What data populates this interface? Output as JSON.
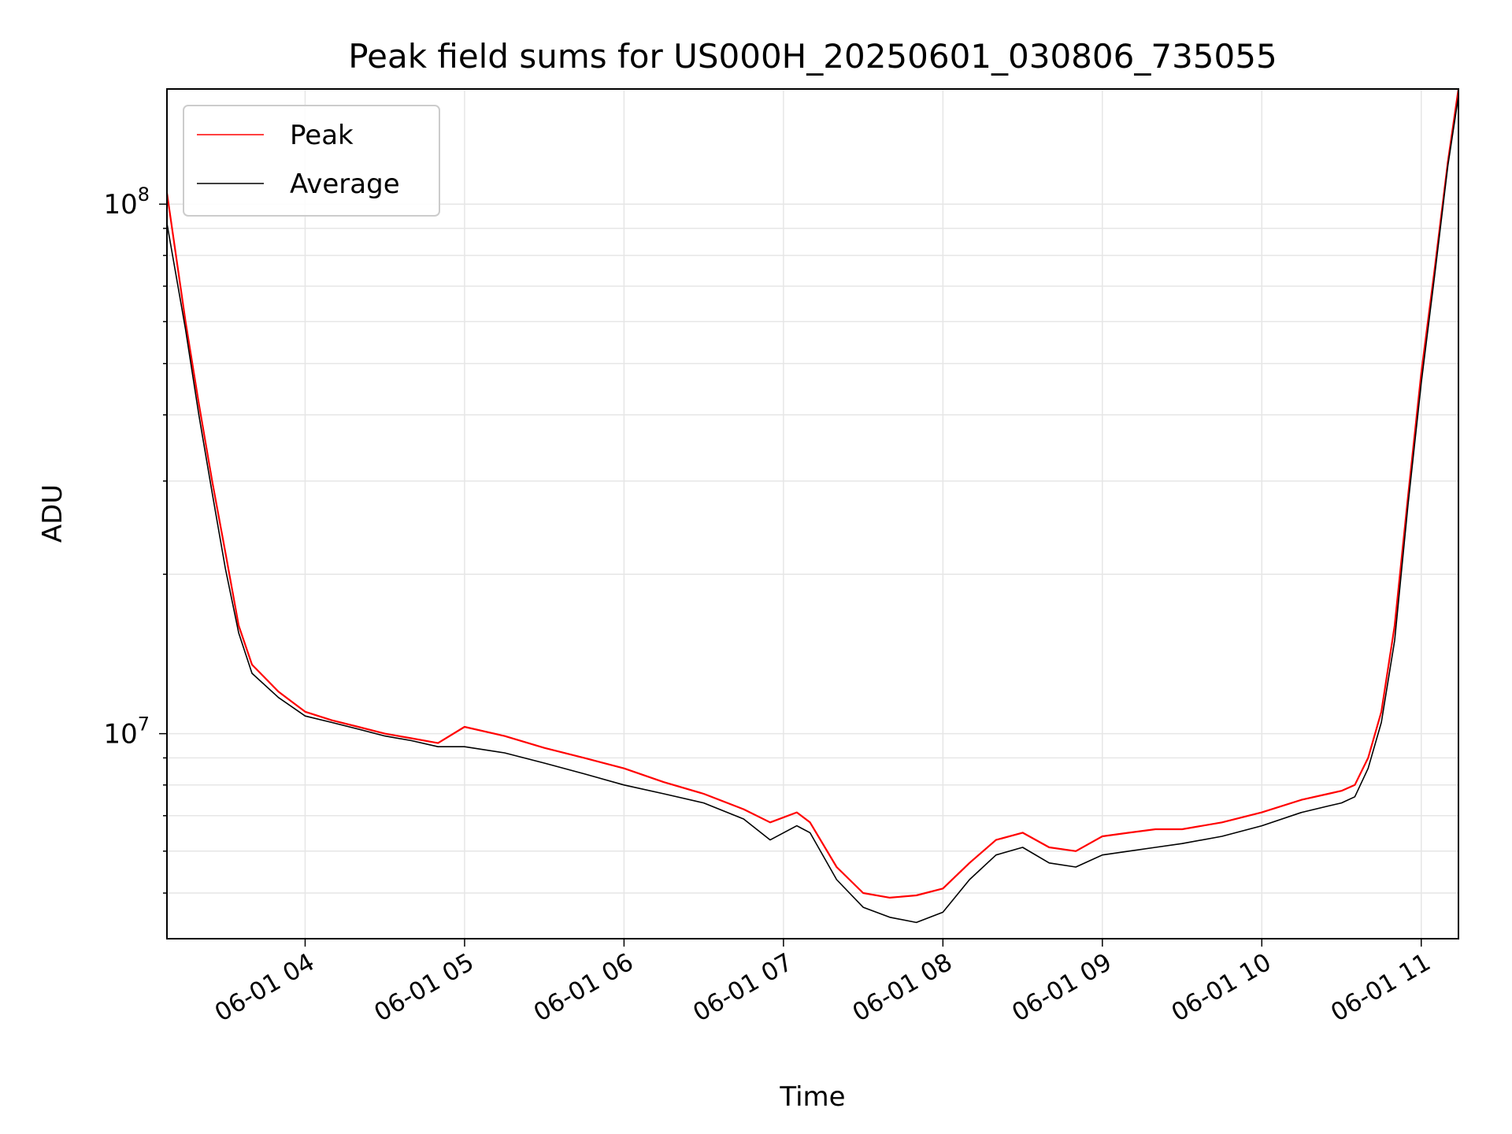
{
  "chart_data": {
    "type": "line",
    "title": "Peak field sums for US000H_20250601_030806_735055",
    "xlabel": "Time",
    "ylabel": "ADU",
    "y_scale": "log",
    "ylim": [
      4100000,
      165000000
    ],
    "xlim": [
      "2025-06-01 03:08",
      "2025-06-01 11:14"
    ],
    "grid": true,
    "legend_position": "upper left",
    "x_tick_labels": [
      "06-01 04",
      "06-01 05",
      "06-01 06",
      "06-01 07",
      "06-01 08",
      "06-01 09",
      "06-01 10",
      "06-01 11"
    ],
    "x_ticks": [
      "2025-06-01 04:00",
      "2025-06-01 05:00",
      "2025-06-01 06:00",
      "2025-06-01 07:00",
      "2025-06-01 08:00",
      "2025-06-01 09:00",
      "2025-06-01 10:00",
      "2025-06-01 11:00"
    ],
    "y_tick_labels": [
      {
        "value": 10000000,
        "base": "10",
        "exp": "7"
      },
      {
        "value": 100000000,
        "base": "10",
        "exp": "8"
      }
    ],
    "x": [
      "2025-06-01 03:08",
      "2025-06-01 03:15",
      "2025-06-01 03:20",
      "2025-06-01 03:25",
      "2025-06-01 03:30",
      "2025-06-01 03:35",
      "2025-06-01 03:40",
      "2025-06-01 03:50",
      "2025-06-01 04:00",
      "2025-06-01 04:10",
      "2025-06-01 04:20",
      "2025-06-01 04:30",
      "2025-06-01 04:40",
      "2025-06-01 04:50",
      "2025-06-01 05:00",
      "2025-06-01 05:15",
      "2025-06-01 05:30",
      "2025-06-01 05:45",
      "2025-06-01 06:00",
      "2025-06-01 06:15",
      "2025-06-01 06:30",
      "2025-06-01 06:45",
      "2025-06-01 06:55",
      "2025-06-01 07:05",
      "2025-06-01 07:10",
      "2025-06-01 07:20",
      "2025-06-01 07:30",
      "2025-06-01 07:40",
      "2025-06-01 07:50",
      "2025-06-01 08:00",
      "2025-06-01 08:10",
      "2025-06-01 08:20",
      "2025-06-01 08:30",
      "2025-06-01 08:40",
      "2025-06-01 08:50",
      "2025-06-01 09:00",
      "2025-06-01 09:10",
      "2025-06-01 09:20",
      "2025-06-01 09:30",
      "2025-06-01 09:45",
      "2025-06-01 10:00",
      "2025-06-01 10:15",
      "2025-06-01 10:25",
      "2025-06-01 10:30",
      "2025-06-01 10:35",
      "2025-06-01 10:40",
      "2025-06-01 10:45",
      "2025-06-01 10:50",
      "2025-06-01 10:55",
      "2025-06-01 11:00",
      "2025-06-01 11:05",
      "2025-06-01 11:10",
      "2025-06-01 11:14"
    ],
    "series": [
      {
        "name": "Peak",
        "color": "#ff0000",
        "values": [
          105000000,
          60000000,
          42000000,
          30000000,
          22000000,
          16000000,
          13500000,
          12000000,
          11000000,
          10600000,
          10300000,
          10000000,
          9800000,
          9600000,
          10300000,
          9900000,
          9400000,
          9000000,
          8600000,
          8100000,
          7700000,
          7200000,
          6800000,
          7100000,
          6800000,
          5600000,
          5000000,
          4900000,
          4950000,
          5100000,
          5700000,
          6300000,
          6500000,
          6100000,
          6000000,
          6400000,
          6500000,
          6600000,
          6600000,
          6800000,
          7100000,
          7500000,
          7700000,
          7800000,
          8000000,
          9000000,
          11000000,
          16000000,
          28000000,
          48000000,
          75000000,
          120000000,
          165000000
        ]
      },
      {
        "name": "Average",
        "color": "#000000",
        "values": [
          92000000,
          58000000,
          40000000,
          28500000,
          20500000,
          15500000,
          13000000,
          11700000,
          10800000,
          10500000,
          10200000,
          9900000,
          9700000,
          9450000,
          9450000,
          9200000,
          8800000,
          8400000,
          8000000,
          7700000,
          7400000,
          6900000,
          6300000,
          6700000,
          6500000,
          5300000,
          4700000,
          4500000,
          4400000,
          4600000,
          5300000,
          5900000,
          6100000,
          5700000,
          5600000,
          5900000,
          6000000,
          6100000,
          6200000,
          6400000,
          6700000,
          7100000,
          7300000,
          7400000,
          7600000,
          8600000,
          10500000,
          15000000,
          27000000,
          46000000,
          73000000,
          118000000,
          160000000
        ]
      }
    ]
  }
}
